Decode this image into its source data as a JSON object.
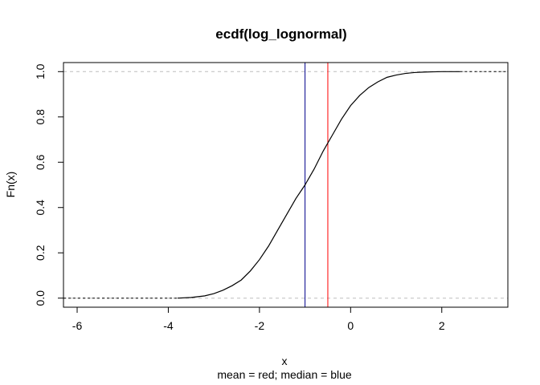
{
  "chart_data": {
    "type": "line",
    "title": "ecdf(log_lognormal)",
    "xlabel": "x",
    "ylabel": "Fn(x)",
    "subtitle": "mean = red; median = blue",
    "xlim": [
      -6.3,
      3.45
    ],
    "ylim": [
      -0.04,
      1.04
    ],
    "x_ticks": [
      -6,
      -4,
      -2,
      0,
      2
    ],
    "x_tick_labels": [
      "-6",
      "-4",
      "-2",
      "0",
      "2"
    ],
    "y_ticks": [
      0.0,
      0.2,
      0.4,
      0.6,
      0.8,
      1.0
    ],
    "y_tick_labels": [
      "0.0",
      "0.2",
      "0.4",
      "0.6",
      "0.8",
      "1.0"
    ],
    "reference_hlines": [
      0,
      1
    ],
    "vlines": [
      {
        "name": "mean",
        "x": -0.5,
        "color": "#ff0000"
      },
      {
        "name": "median",
        "x": -1.0,
        "color": "#00008b"
      }
    ],
    "series": [
      {
        "x": [
          -3.8,
          -3.5,
          -3.2,
          -3.0,
          -2.8,
          -2.6,
          -2.4,
          -2.2,
          -2.0,
          -1.8,
          -1.6,
          -1.4,
          -1.2,
          -1.0,
          -0.8,
          -0.6,
          -0.4,
          -0.2,
          0.0,
          0.2,
          0.4,
          0.6,
          0.8,
          1.0,
          1.2,
          1.4,
          1.6,
          1.8,
          2.0,
          2.4
        ],
        "y": [
          0.0,
          0.003,
          0.01,
          0.02,
          0.035,
          0.055,
          0.08,
          0.12,
          0.17,
          0.23,
          0.3,
          0.37,
          0.44,
          0.5,
          0.57,
          0.65,
          0.72,
          0.79,
          0.85,
          0.895,
          0.93,
          0.955,
          0.975,
          0.985,
          0.992,
          0.996,
          0.998,
          0.999,
          1.0,
          1.0
        ]
      }
    ]
  }
}
